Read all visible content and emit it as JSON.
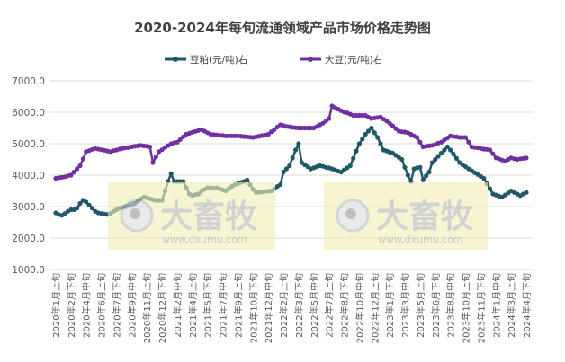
{
  "chart_data": {
    "type": "line",
    "title": "2020-2024年每旬流通领域产品市场价格走势图",
    "xlabel": "",
    "ylabel": "",
    "ylim": [
      1000,
      7000
    ],
    "yticks": [
      "1000.0",
      "2000.0",
      "3000.0",
      "4000.0",
      "5000.0",
      "6000.0",
      "7000.0"
    ],
    "grid": true,
    "legend_position": "top",
    "x_count": 156,
    "x_tick_every": 5,
    "x_tick_labels": [
      "2020年1月上旬",
      "2020年2月下旬",
      "2020年4月中旬",
      "2020年6月上旬",
      "2020年7月下旬",
      "2020年9月中旬",
      "2020年11月上旬",
      "2020年12月下旬",
      "2021年2月中旬",
      "2021年4月上旬",
      "2021年5月下旬",
      "2021年7月中旬",
      "2021年9月上旬",
      "2021年10月下旬",
      "2021年12月中旬",
      "2022年2月上旬",
      "2022年3月下旬",
      "2022年5月中旬",
      "2022年7月上旬",
      "2022年8月下旬",
      "2022年10月中旬",
      "2022年12月上旬",
      "2023年1月下旬",
      "2023年3月中旬",
      "2023年5月上旬",
      "2023年6月下旬",
      "2023年8月中旬",
      "2023年10月上旬",
      "2023年11月下旬",
      "2024年1月中旬",
      "2024年3月上旬",
      "2024年4月下旬"
    ],
    "series": [
      {
        "name": "豆粕(元/吨)右",
        "color": "#215868",
        "values": [
          2800,
          2750,
          2720,
          2780,
          2850,
          2900,
          2900,
          2950,
          3100,
          3200,
          3150,
          3050,
          2950,
          2850,
          2800,
          2780,
          2760,
          2750,
          2780,
          2850,
          2900,
          2950,
          2980,
          3000,
          3030,
          3070,
          3100,
          3170,
          3250,
          3300,
          3280,
          3250,
          3220,
          3200,
          3200,
          3200,
          3500,
          3800,
          4050,
          3800,
          3800,
          3800,
          3800,
          3600,
          3400,
          3350,
          3380,
          3400,
          3500,
          3550,
          3600,
          3600,
          3580,
          3600,
          3570,
          3530,
          3500,
          3570,
          3640,
          3700,
          3730,
          3770,
          3800,
          3850,
          3700,
          3550,
          3450,
          3460,
          3470,
          3480,
          3490,
          3500,
          3570,
          3640,
          3700,
          4100,
          4200,
          4300,
          4550,
          4800,
          5000,
          4400,
          4330,
          4270,
          4200,
          4230,
          4270,
          4300,
          4280,
          4250,
          4230,
          4200,
          4170,
          4130,
          4100,
          4170,
          4230,
          4300,
          4530,
          4770,
          5000,
          5150,
          5300,
          5400,
          5500,
          5350,
          5200,
          5000,
          4800,
          4770,
          4730,
          4700,
          4630,
          4570,
          4500,
          4250,
          4000,
          3800,
          4200,
          4230,
          4250,
          3850,
          3980,
          4100,
          4400,
          4500,
          4600,
          4700,
          4800,
          4900,
          4800,
          4670,
          4530,
          4400,
          4330,
          4270,
          4200,
          4140,
          4080,
          4020,
          3960,
          3900,
          3730,
          3570,
          3400,
          3370,
          3330,
          3300,
          3370,
          3430,
          3500,
          3450,
          3400,
          3350,
          3400,
          3450
        ]
      },
      {
        "name": "大豆(元/吨)右",
        "color": "#7030A0",
        "values": [
          3900,
          3920,
          3930,
          3950,
          3980,
          4000,
          4100,
          4200,
          4300,
          4520,
          4750,
          4780,
          4820,
          4850,
          4830,
          4810,
          4790,
          4770,
          4750,
          4780,
          4800,
          4830,
          4850,
          4870,
          4880,
          4900,
          4920,
          4930,
          4950,
          4930,
          4920,
          4900,
          4400,
          4580,
          4750,
          4810,
          4880,
          4940,
          5000,
          5030,
          5050,
          5130,
          5220,
          5300,
          5330,
          5360,
          5390,
          5420,
          5450,
          5400,
          5350,
          5300,
          5290,
          5280,
          5270,
          5260,
          5250,
          5250,
          5250,
          5250,
          5250,
          5240,
          5230,
          5220,
          5210,
          5200,
          5220,
          5240,
          5260,
          5280,
          5300,
          5380,
          5450,
          5530,
          5600,
          5580,
          5550,
          5540,
          5520,
          5510,
          5500,
          5500,
          5500,
          5500,
          5500,
          5500,
          5550,
          5600,
          5650,
          5720,
          5800,
          6200,
          6150,
          6100,
          6050,
          6010,
          5980,
          5940,
          5900,
          5900,
          5900,
          5900,
          5900,
          5850,
          5800,
          5820,
          5830,
          5850,
          5780,
          5720,
          5650,
          5570,
          5480,
          5400,
          5380,
          5370,
          5350,
          5300,
          5250,
          5200,
          5050,
          4900,
          4920,
          4930,
          4950,
          4980,
          5020,
          5050,
          5120,
          5180,
          5250,
          5230,
          5220,
          5200,
          5200,
          5200,
          5050,
          4900,
          4880,
          4870,
          4850,
          4830,
          4820,
          4800,
          4680,
          4550,
          4520,
          4480,
          4450,
          4500,
          4550,
          4520,
          4500,
          4520,
          4530,
          4550
        ]
      }
    ]
  },
  "watermark": {
    "brand": "大畜牧",
    "url": "www.dxumu.com",
    "box_color": "#f5f0c0"
  }
}
